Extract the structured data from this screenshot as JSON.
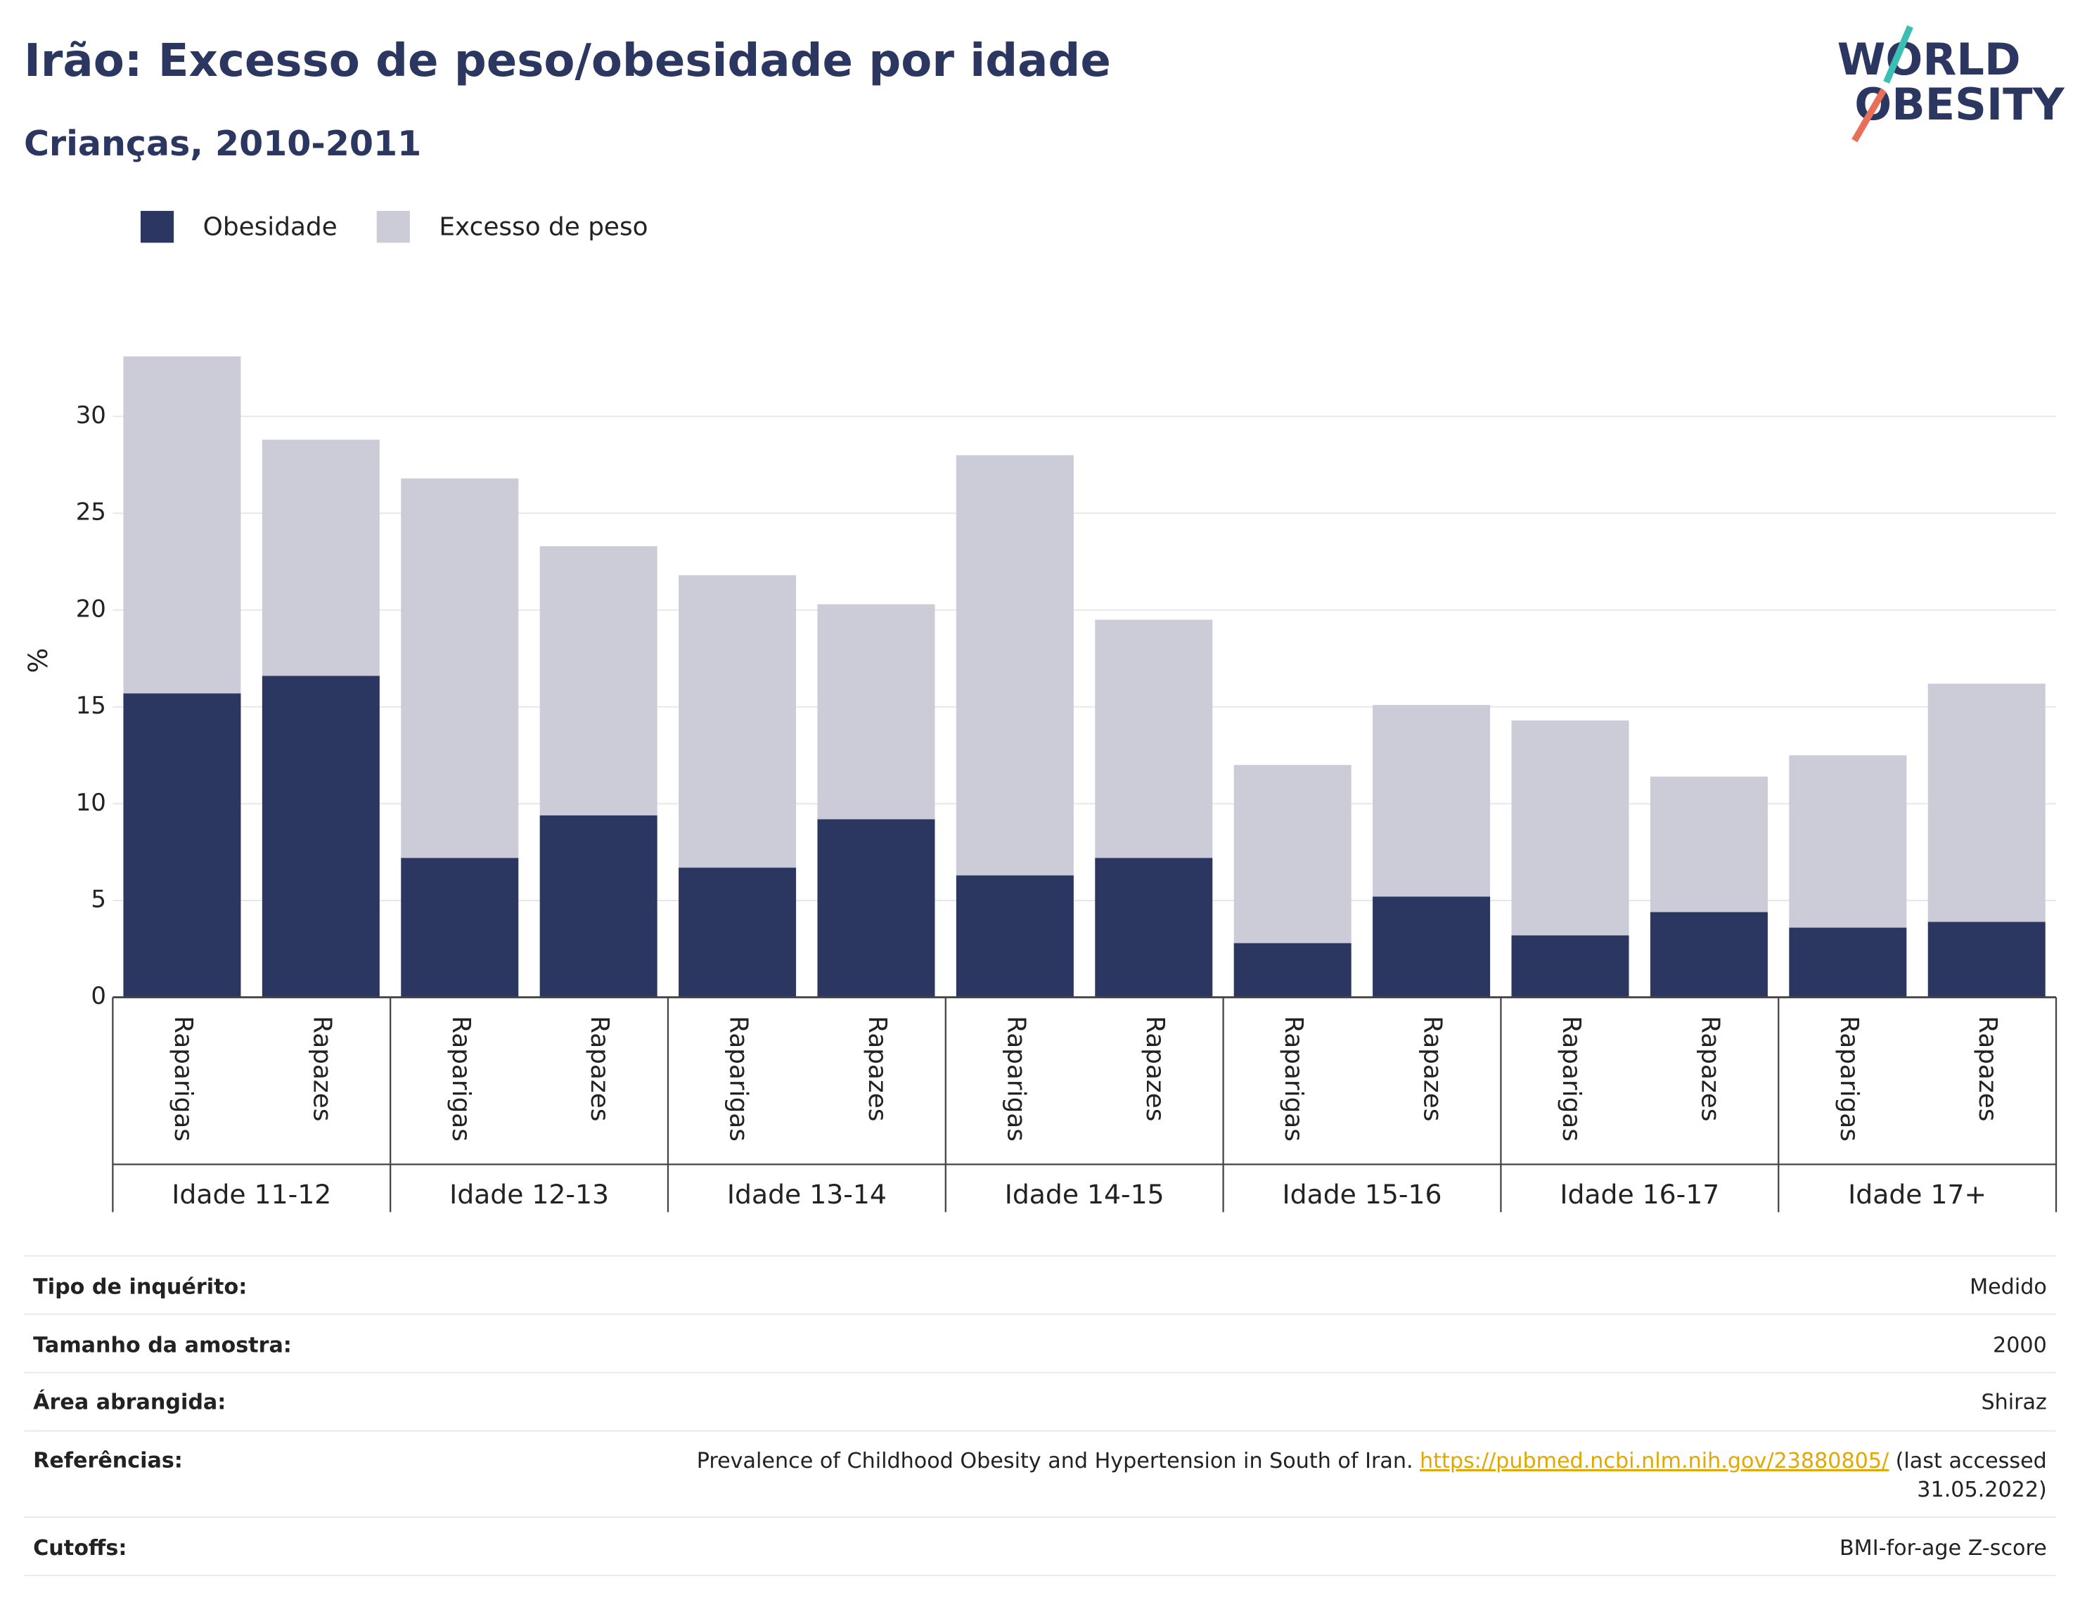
{
  "chart_data": {
    "type": "stacked_bar",
    "title": "Irão: Excesso de peso/obesidade por idade",
    "subtitle": "Crianças, 2010-2011",
    "logo": [
      "WORLD",
      "OBESITY"
    ],
    "y_label": "%",
    "groups": [
      "Idade 11-12",
      "Idade 12-13",
      "Idade 13-14",
      "Idade 14-15",
      "Idade 15-16",
      "Idade 16-17",
      "Idade 17+"
    ],
    "categories": [
      "Raparigas",
      "Rapazes",
      "Raparigas",
      "Rapazes",
      "Raparigas",
      "Rapazes",
      "Raparigas",
      "Rapazes",
      "Raparigas",
      "Rapazes",
      "Raparigas",
      "Rapazes",
      "Raparigas",
      "Rapazes"
    ],
    "series": [
      {
        "name": "Obesidade",
        "color": "#2b3661",
        "values": [
          15.7,
          16.6,
          7.2,
          9.4,
          6.7,
          9.2,
          6.3,
          7.2,
          2.8,
          5.2,
          3.2,
          4.4,
          3.6,
          3.9
        ]
      },
      {
        "name": "Excesso de peso",
        "color": "#cbccd8",
        "values": [
          17.4,
          12.2,
          19.6,
          13.9,
          15.1,
          11.1,
          21.7,
          12.3,
          9.2,
          9.9,
          11.1,
          7.0,
          8.9,
          12.3
        ]
      }
    ],
    "ylim": [
      0,
      35
    ],
    "yticks": [
      0,
      5,
      10,
      15,
      20,
      25,
      30
    ],
    "grid": true
  },
  "info": [
    {
      "label": "Tipo de inquérito:",
      "value": "Medido"
    },
    {
      "label": "Tamanho da amostra:",
      "value": "2000"
    },
    {
      "label": "Área abrangida:",
      "value": "Shiraz"
    },
    {
      "label": "Referências:",
      "value_parts": [
        "Prevalence of Childhood Obesity and Hypertension in South of Iran.",
        "https://pubmed.ncbi.nlm.nih.gov/23880805/",
        "(last accessed",
        "31.05.2022)"
      ]
    },
    {
      "label": "Cutoffs:",
      "value": "BMI-for-age Z-score"
    }
  ]
}
